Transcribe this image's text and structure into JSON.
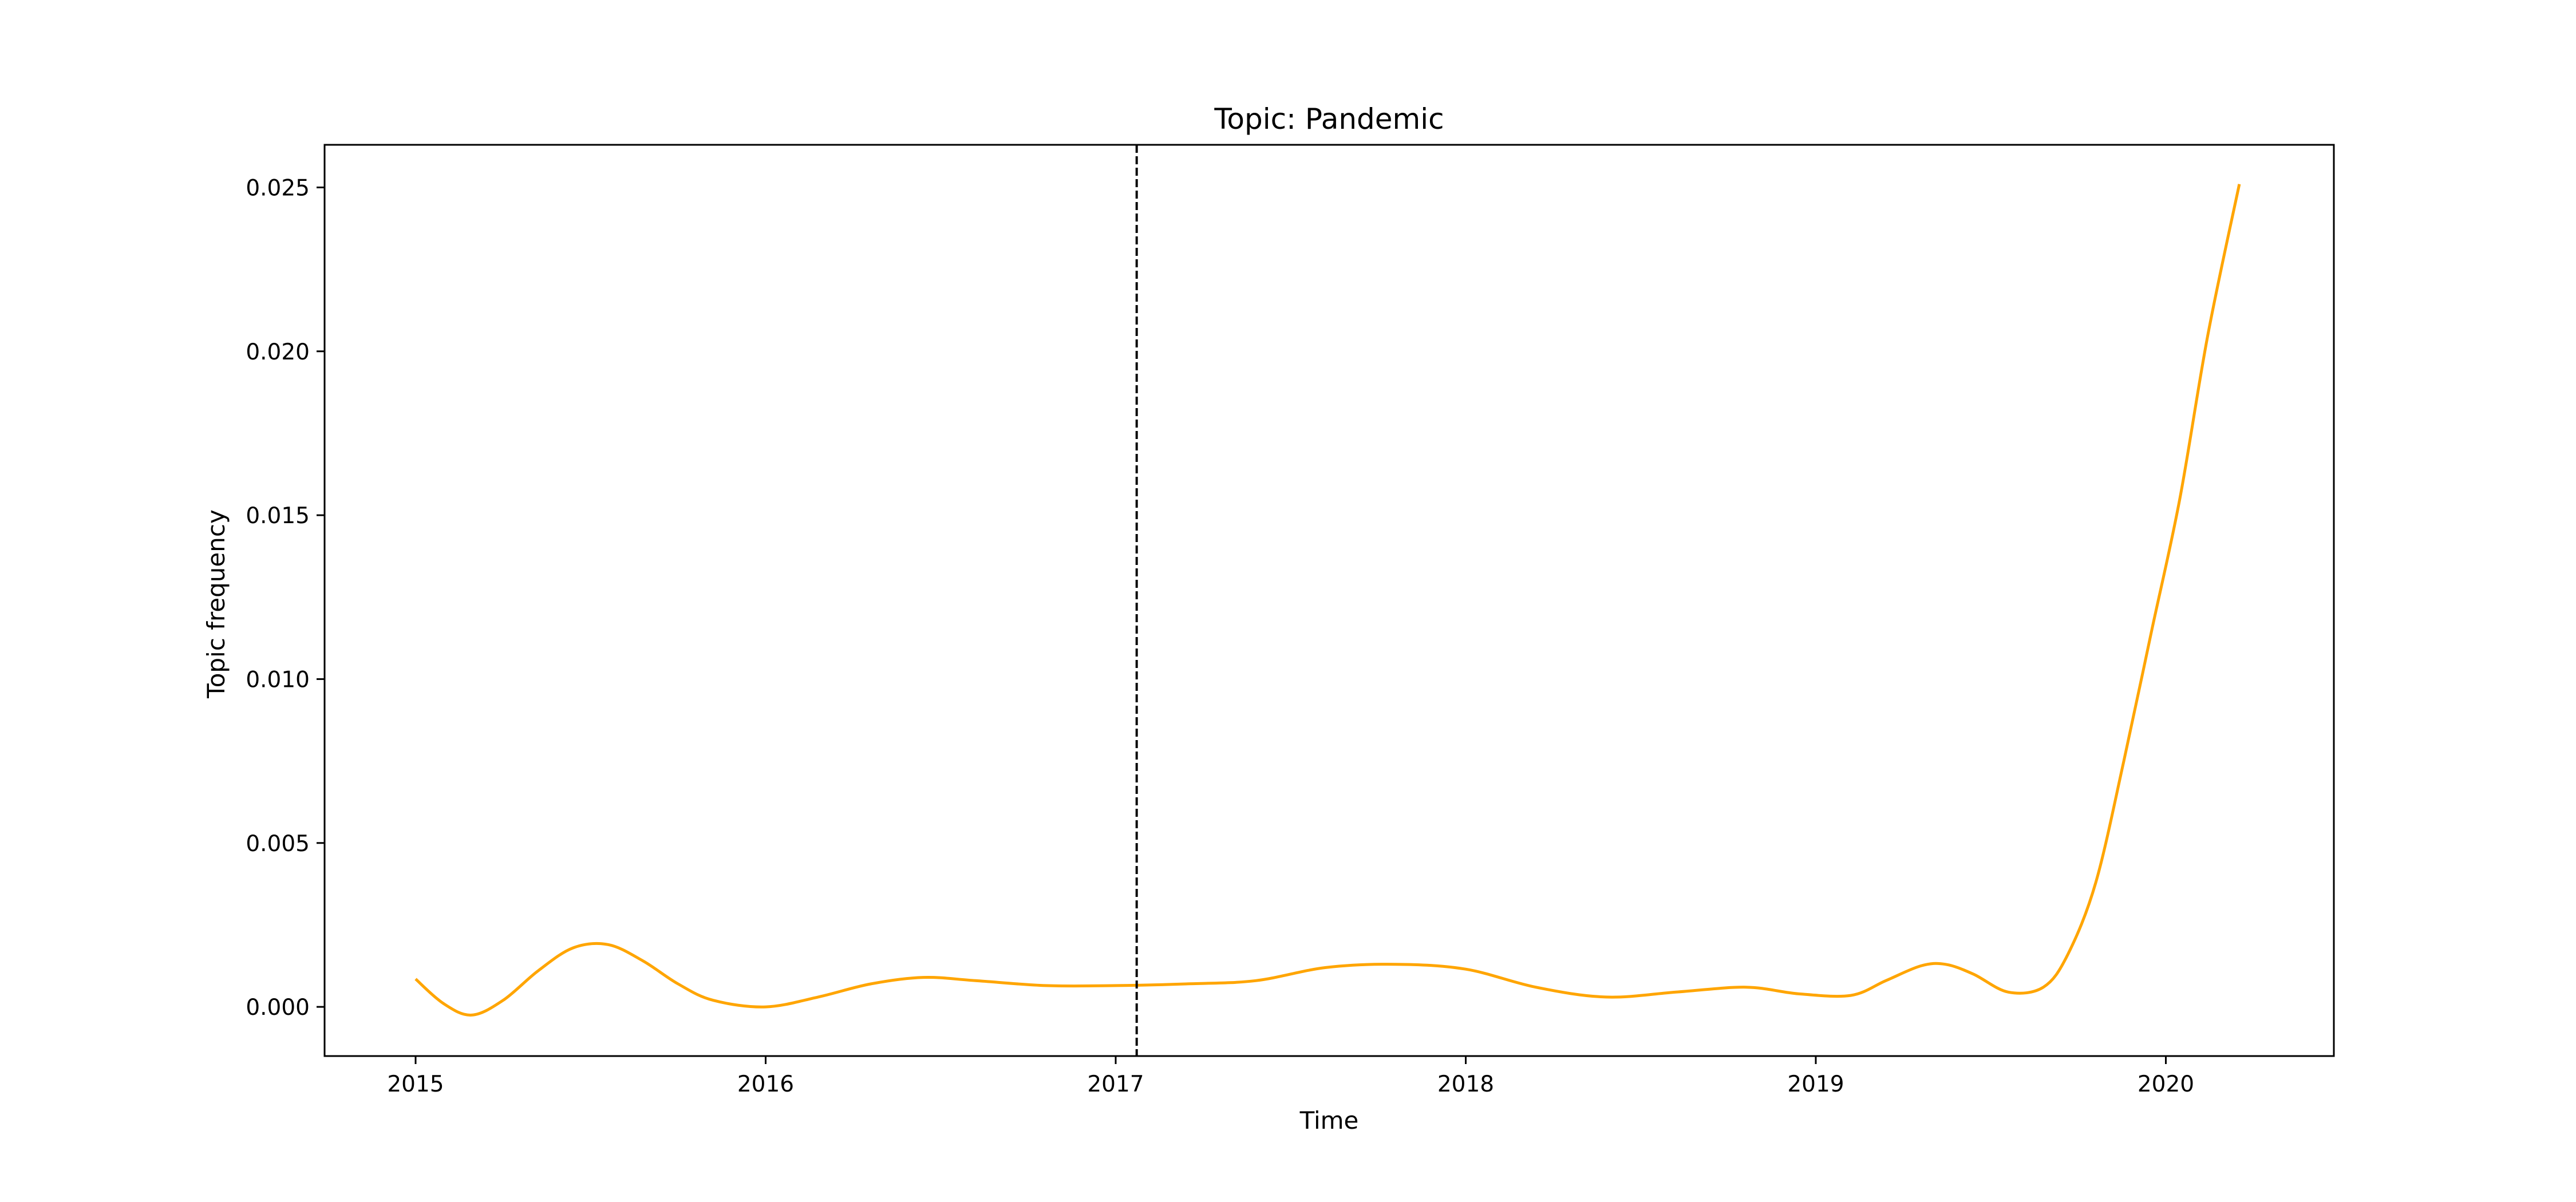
{
  "chart_data": {
    "type": "line",
    "title": "Topic: Pandemic",
    "xlabel": "Time",
    "ylabel": "Topic frequency",
    "xlim": [
      2014.74,
      2020.48
    ],
    "ylim": [
      -0.0015,
      0.0263
    ],
    "xticks": [
      2015,
      2016,
      2017,
      2018,
      2019,
      2020
    ],
    "yticks": [
      0.0,
      0.005,
      0.01,
      0.015,
      0.02,
      0.025
    ],
    "ytick_labels": [
      "0.000",
      "0.005",
      "0.010",
      "0.015",
      "0.020",
      "0.025"
    ],
    "grid": false,
    "vline": {
      "x": 2017.06,
      "style": "dashed",
      "color": "#000000"
    },
    "series": [
      {
        "color": "#FFA500",
        "x": [
          2015.0,
          2015.08,
          2015.16,
          2015.25,
          2015.35,
          2015.45,
          2015.55,
          2015.65,
          2015.75,
          2015.85,
          2016.0,
          2016.15,
          2016.3,
          2016.45,
          2016.6,
          2016.8,
          2017.0,
          2017.2,
          2017.4,
          2017.6,
          2017.8,
          2018.0,
          2018.2,
          2018.4,
          2018.6,
          2018.8,
          2018.95,
          2019.1,
          2019.2,
          2019.3,
          2019.37,
          2019.45,
          2019.55,
          2019.65,
          2019.72,
          2019.8,
          2019.88,
          2019.96,
          2020.04,
          2020.12,
          2020.21
        ],
        "y": [
          0.00085,
          0.0001,
          -0.00025,
          0.0002,
          0.0011,
          0.0018,
          0.0019,
          0.0014,
          0.0007,
          0.0002,
          0.0,
          0.0003,
          0.0007,
          0.0009,
          0.0008,
          0.00065,
          0.00065,
          0.0007,
          0.0008,
          0.0012,
          0.0013,
          0.00115,
          0.0006,
          0.0003,
          0.00045,
          0.0006,
          0.0004,
          0.00035,
          0.0008,
          0.00125,
          0.0013,
          0.001,
          0.00045,
          0.0006,
          0.0016,
          0.0038,
          0.0075,
          0.0115,
          0.0155,
          0.0205,
          0.0251
        ]
      }
    ]
  }
}
